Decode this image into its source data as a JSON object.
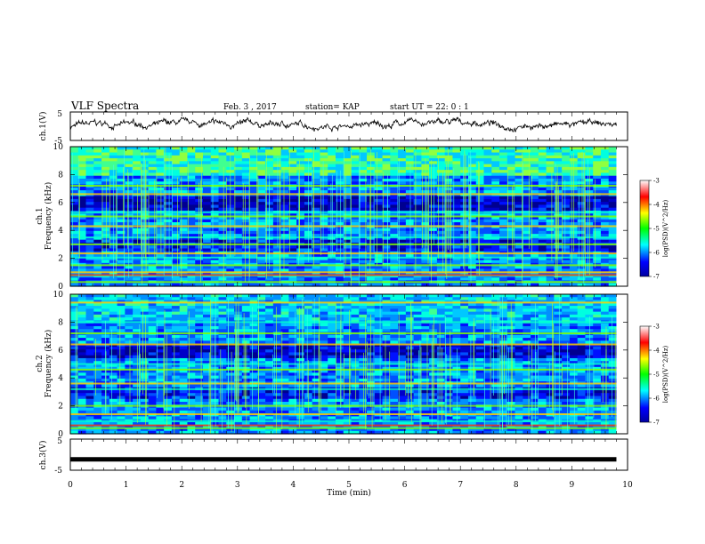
{
  "header": {
    "title": "VLF Spectra",
    "date": "Feb. 3 , 2017",
    "station": "station= KAP",
    "start": "start UT = 22: 0 : 1"
  },
  "chart_data": [
    {
      "type": "line",
      "panel": "ch1-waveform",
      "ylabel": "ch.1(V)",
      "ylim": [
        -5,
        5
      ],
      "yticks": [
        "5",
        "-5"
      ],
      "x_range_min": [
        0,
        9.8
      ],
      "trace": "noisy wandering signal between about -1 and 2 V",
      "color": "#000000"
    },
    {
      "type": "heatmap",
      "panel": "ch1-spectrogram",
      "ylabel": "ch.1\nFrequency (kHz)",
      "ylim": [
        0,
        10
      ],
      "yticks": [
        "0",
        "2",
        "4",
        "6",
        "8",
        "10"
      ],
      "x_range_min": [
        0,
        9.8
      ],
      "bands_khz": [
        0.3,
        0.75,
        1.0,
        1.5,
        2.05,
        2.35,
        3.0,
        3.5,
        4.3,
        5.0,
        5.3,
        6.6,
        7.2
      ],
      "colorbar": {
        "label": "log(PSD)(V^2/Hz)",
        "range": [
          -7,
          -3
        ],
        "ticks": [
          "-3",
          "-4",
          "-5",
          "-6",
          "-7"
        ]
      }
    },
    {
      "type": "heatmap",
      "panel": "ch2-spectrogram",
      "ylabel": "ch.2\nFrequency (kHz)",
      "ylim": [
        0,
        10
      ],
      "yticks": [
        "0",
        "2",
        "4",
        "6",
        "8",
        "10"
      ],
      "x_range_min": [
        0,
        9.8
      ],
      "bands_khz": [
        0.4,
        0.9,
        1.4,
        2.0,
        3.2,
        3.6,
        4.6,
        5.0,
        6.4,
        7.2,
        8.0,
        9.4
      ],
      "colorbar": {
        "label": "log(PSD)(V^2/Hz)",
        "range": [
          -7,
          -3
        ],
        "ticks": [
          "-3",
          "-4",
          "-5",
          "-6",
          "-7"
        ]
      }
    },
    {
      "type": "line",
      "panel": "ch3-waveform",
      "ylabel": "ch.3(V)",
      "ylim": [
        -5,
        5
      ],
      "yticks": [
        "5",
        "-5"
      ],
      "x_range_min": [
        0,
        9.8
      ],
      "constant_value": -1.5,
      "color": "#000000"
    }
  ],
  "x_axis": {
    "label": "Time (min)",
    "range": [
      0,
      10
    ],
    "ticks": [
      "0",
      "1",
      "2",
      "3",
      "4",
      "5",
      "6",
      "7",
      "8",
      "9",
      "10"
    ]
  }
}
